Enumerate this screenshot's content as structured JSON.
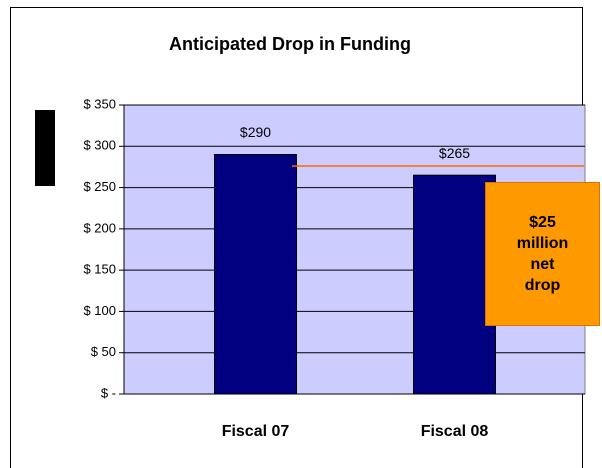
{
  "chart_data": {
    "type": "bar",
    "title": "Anticipated Drop in Funding",
    "categories": [
      "Fiscal 07",
      "Fiscal 08"
    ],
    "values": [
      290,
      265
    ],
    "value_labels": [
      "$290",
      "$265"
    ],
    "color": "#000080",
    "ylim": [
      0,
      350
    ],
    "yticks": [
      {
        "value": 0,
        "label": "$ -"
      },
      {
        "value": 50,
        "label": "$ 50"
      },
      {
        "value": 100,
        "label": "$ 100"
      },
      {
        "value": 150,
        "label": "$ 150"
      },
      {
        "value": 200,
        "label": "$ 200"
      },
      {
        "value": 250,
        "label": "$ 250"
      },
      {
        "value": 300,
        "label": "$ 300"
      },
      {
        "value": 350,
        "label": "$ 350"
      }
    ],
    "grid": true,
    "annotation": "$25 million net drop"
  }
}
